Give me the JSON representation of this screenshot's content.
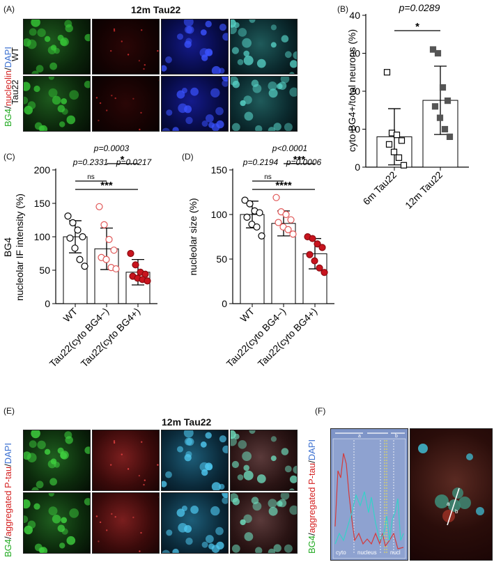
{
  "figure": {
    "panel_a": {
      "label": "(A)",
      "title": "12m Tau22",
      "side_label_parts": [
        {
          "text": "BG4",
          "color": "#22aa22"
        },
        {
          "text": "/",
          "color": "#111111"
        },
        {
          "text": "nucleolin",
          "color": "#d42020"
        },
        {
          "text": "/",
          "color": "#111111"
        },
        {
          "text": "DAPI",
          "color": "#3a6fd0"
        }
      ],
      "row_labels": [
        "WT",
        "Tau22"
      ]
    },
    "panel_b": {
      "label": "(B)"
    },
    "panel_c": {
      "label": "(C)"
    },
    "panel_d": {
      "label": "(D)"
    },
    "panel_e": {
      "label": "(E)",
      "title": "12m Tau22",
      "side_label_parts": [
        {
          "text": "BG4",
          "color": "#22aa22"
        },
        {
          "text": "/",
          "color": "#111111"
        },
        {
          "text": "aggregated P-tau",
          "color": "#d42020"
        },
        {
          "text": "/",
          "color": "#111111"
        },
        {
          "text": "DAPI",
          "color": "#3a6fd0"
        }
      ]
    },
    "panel_f": {
      "label": "(F)",
      "side_label_parts": [
        {
          "text": "BG4",
          "color": "#22aa22"
        },
        {
          "text": "/",
          "color": "#111111"
        },
        {
          "text": "aggregated P-tau",
          "color": "#d42020"
        },
        {
          "text": "/",
          "color": "#111111"
        },
        {
          "text": "DAPI",
          "color": "#3a6fd0"
        }
      ],
      "profile_labels": {
        "a": "a",
        "b": "b",
        "cyto": "cyto",
        "nucleus": "nucleus",
        "nucl": "nucl"
      },
      "line_labels": {
        "a": "a",
        "b": "b"
      }
    },
    "colors": {
      "green": "#1fa31f",
      "red": "#d42020",
      "blue": "#2a4fd0",
      "cyan": "#49b7c9"
    }
  },
  "chart_data": [
    {
      "id": "B",
      "type": "bar",
      "categories": [
        "6m Tau22",
        "12m Tau22"
      ],
      "values": [
        8.0,
        17.6
      ],
      "error": [
        7.4,
        9.0
      ],
      "ylabel": "cyto BG4+/total neurons (%)",
      "ylim": [
        0,
        40
      ],
      "yticks": [
        0,
        10,
        20,
        30,
        40
      ],
      "points": [
        [
          25,
          9,
          8.5,
          7,
          6,
          4,
          2.5,
          0.5
        ],
        [
          31,
          30,
          21,
          17.5,
          16,
          13,
          10,
          8
        ]
      ],
      "marker": [
        "open-square",
        "filled-square"
      ],
      "pvalue_text": "p=0.0289",
      "brackets": [
        {
          "from": 0,
          "to": 1,
          "label": "*"
        }
      ]
    },
    {
      "id": "C",
      "type": "bar",
      "categories": [
        "WT",
        "Tau22(cyto BG4−)",
        "Tau22(cyto BG4+)"
      ],
      "values": [
        100,
        82,
        47
      ],
      "error": [
        24,
        31,
        19
      ],
      "ylabel_lines": [
        "BG4",
        "nucleolar IF intensity (%)"
      ],
      "ylim": [
        0,
        200
      ],
      "yticks": [
        0,
        50,
        100,
        150,
        200
      ],
      "points": [
        [
          131,
          121,
          110,
          100,
          98,
          83,
          66,
          56
        ],
        [
          145,
          118,
          96,
          80,
          69,
          66,
          54,
          52
        ],
        [
          75,
          58,
          47,
          44,
          41,
          38,
          36,
          34
        ]
      ],
      "marker": [
        "open-circle-black",
        "open-circle-red",
        "filled-circle-red"
      ],
      "pvalues_top": [
        "p=0.0003"
      ],
      "pvalues_row": [
        "p=0.2331",
        "p=0.0217"
      ],
      "brackets": [
        {
          "from": 0,
          "to": 2,
          "label": "***"
        },
        {
          "from": 0,
          "to": 1,
          "label": "ns"
        },
        {
          "from": 1,
          "to": 2,
          "label": "*"
        }
      ]
    },
    {
      "id": "D",
      "type": "bar",
      "categories": [
        "WT",
        "Tau22(cyto BG4−)",
        "Tau22(cyto BG4+)"
      ],
      "values": [
        100,
        90,
        56
      ],
      "error": [
        15,
        14,
        17
      ],
      "ylabel": "nucleolar size (%)",
      "ylim": [
        0,
        150
      ],
      "yticks": [
        0,
        50,
        100,
        150
      ],
      "points": [
        [
          116,
          112,
          104,
          102,
          97,
          89,
          86,
          76
        ],
        [
          119,
          103,
          100,
          94,
          91,
          86,
          83,
          78
        ],
        [
          75,
          73,
          67,
          63,
          55,
          48,
          40,
          35
        ]
      ],
      "marker": [
        "open-circle-black",
        "open-circle-red",
        "filled-circle-red"
      ],
      "pvalues_top": [
        "p<0.0001"
      ],
      "pvalues_row": [
        "p=0.2194",
        "p=0.0006"
      ],
      "brackets": [
        {
          "from": 0,
          "to": 2,
          "label": "****"
        },
        {
          "from": 0,
          "to": 1,
          "label": "ns"
        },
        {
          "from": 1,
          "to": 2,
          "label": "***"
        }
      ]
    }
  ]
}
